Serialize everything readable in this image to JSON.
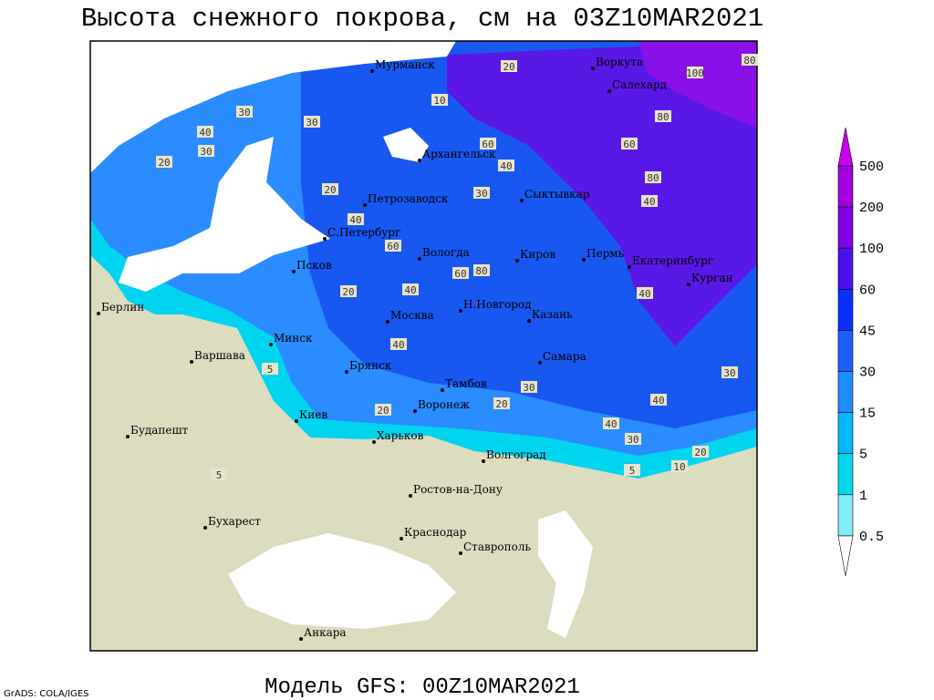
{
  "header": {
    "title": "Высота снежного покрова, см на 03Z10MAR2021"
  },
  "map": {
    "cities": [
      "Мурманск",
      "Воркута",
      "Салехард",
      "Архангельск",
      "Петрозаводск",
      "Сыктывкар",
      "С.Петербург",
      "Вологда",
      "Киров",
      "Пермь",
      "Екатеринбург",
      "Курган",
      "Псков",
      "Берлин",
      "Москва",
      "Н.Новгород",
      "Казань",
      "Минск",
      "Варшава",
      "Брянск",
      "Тамбов",
      "Самара",
      "Киев",
      "Воронеж",
      "Будапешт",
      "Харьков",
      "Волгоград",
      "Ростов-на-Дону",
      "Бухарест",
      "Краснодар",
      "Ставрополь",
      "Анкара"
    ],
    "contour_labels": [
      "20",
      "100",
      "80",
      "10",
      "30",
      "40",
      "30",
      "20",
      "30",
      "60",
      "80",
      "60",
      "40",
      "20",
      "30",
      "80",
      "40",
      "40",
      "60",
      "60",
      "80",
      "20",
      "40",
      "40",
      "40",
      "30",
      "40",
      "40",
      "30",
      "20",
      "10",
      "5",
      "5",
      "5",
      "20",
      "20",
      "30"
    ]
  },
  "legend": {
    "labels": [
      "500",
      "200",
      "100",
      "60",
      "45",
      "30",
      "15",
      "5",
      "1",
      "0.5"
    ]
  },
  "footer": {
    "credit": "GrADS: COLA/IGES",
    "model": "Модель GFS: 00Z10MAR2021"
  }
}
